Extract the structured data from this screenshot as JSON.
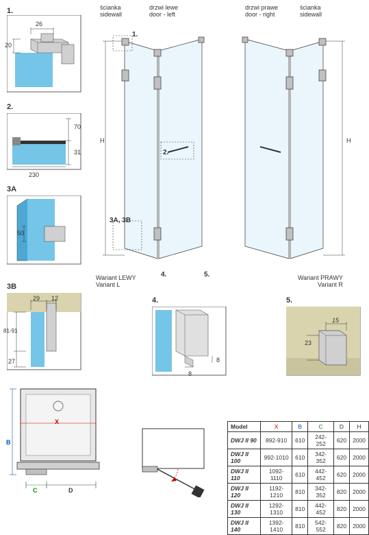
{
  "labels": {
    "sidewall_pl": "ścianka",
    "sidewall_en": "sidewall",
    "door_left_pl": "drzwi lewe",
    "door_left_en": "door - left",
    "door_right_pl": "drzwi prawe",
    "door_right_en": "door - right",
    "variant_l_pl": "Wariant LEWY",
    "variant_l_en": "Variant L",
    "variant_r_pl": "Wariant PRAWY",
    "variant_r_en": "Variant R"
  },
  "callouts": {
    "c1": "1.",
    "c2": "2.",
    "c3a": "3A",
    "c3b": "3B",
    "c3ab": "3A, 3B",
    "c4": "4.",
    "c5": "5."
  },
  "dims": {
    "d26": "26",
    "d20": "20",
    "d70": "70",
    "d31": "31",
    "d230": "230",
    "d50": "50",
    "d29": "29",
    "d12": "12",
    "d81_91": "81-91",
    "d27": "27",
    "d8a": "8",
    "d8b": "8",
    "d23": "23",
    "d15": "15",
    "H": "H",
    "X": "X",
    "B": "B",
    "C": "C",
    "D": "D"
  },
  "table": {
    "headers": [
      "Model",
      "X",
      "B",
      "C",
      "D",
      "H"
    ],
    "rows": [
      [
        "DWJ II 90",
        "892-910",
        "610",
        "242-252",
        "620",
        "2000"
      ],
      [
        "DWJ II 100",
        "992-1010",
        "610",
        "342-352",
        "620",
        "2000"
      ],
      [
        "DWJ II 110",
        "1092-1110",
        "610",
        "442-452",
        "620",
        "2000"
      ],
      [
        "DWJ II 120",
        "1192-1210",
        "810",
        "342-352",
        "820",
        "2000"
      ],
      [
        "DWJ II 130",
        "1292-1310",
        "810",
        "442-452",
        "820",
        "2000"
      ],
      [
        "DWJ II 140",
        "1392-1410",
        "810",
        "542-552",
        "820",
        "2000"
      ]
    ],
    "header_colors": [
      "#333",
      "#c00",
      "#05b",
      "#090",
      "#333",
      "#333"
    ]
  },
  "colors": {
    "glass": "#74c5e8",
    "glass_dk": "#4ba8d4",
    "metal": "#c0c0c0",
    "metal_dk": "#888",
    "bg_tan": "#d9d4ae",
    "line": "#333"
  }
}
